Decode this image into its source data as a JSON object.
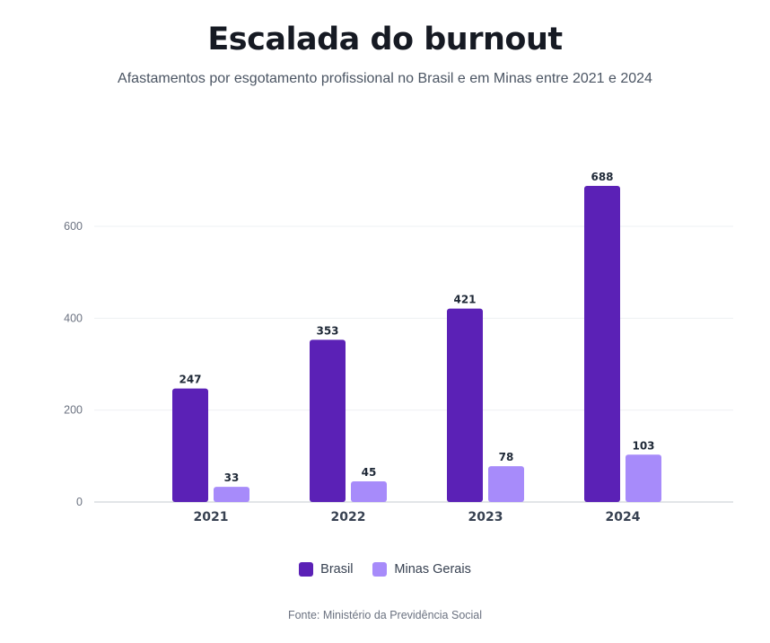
{
  "chart_data": {
    "type": "bar",
    "title": "Escalada do burnout",
    "subtitle": "Afastamentos por esgotamento profissional no Brasil e em Minas entre 2021 e 2024",
    "categories": [
      "2021",
      "2022",
      "2023",
      "2024"
    ],
    "series": [
      {
        "name": "Brasil",
        "values": [
          247,
          353,
          421,
          688
        ],
        "color": "#5b21b6"
      },
      {
        "name": "Minas Gerais",
        "values": [
          33,
          45,
          78,
          103
        ],
        "color": "#a78bfa"
      }
    ],
    "xlabel": "",
    "ylabel": "",
    "yticks": [
      0,
      200,
      400,
      600
    ],
    "ylim": [
      0,
      700
    ],
    "grid": true,
    "legend_position": "bottom",
    "source": "Fonte: Ministério da Previdência Social"
  }
}
